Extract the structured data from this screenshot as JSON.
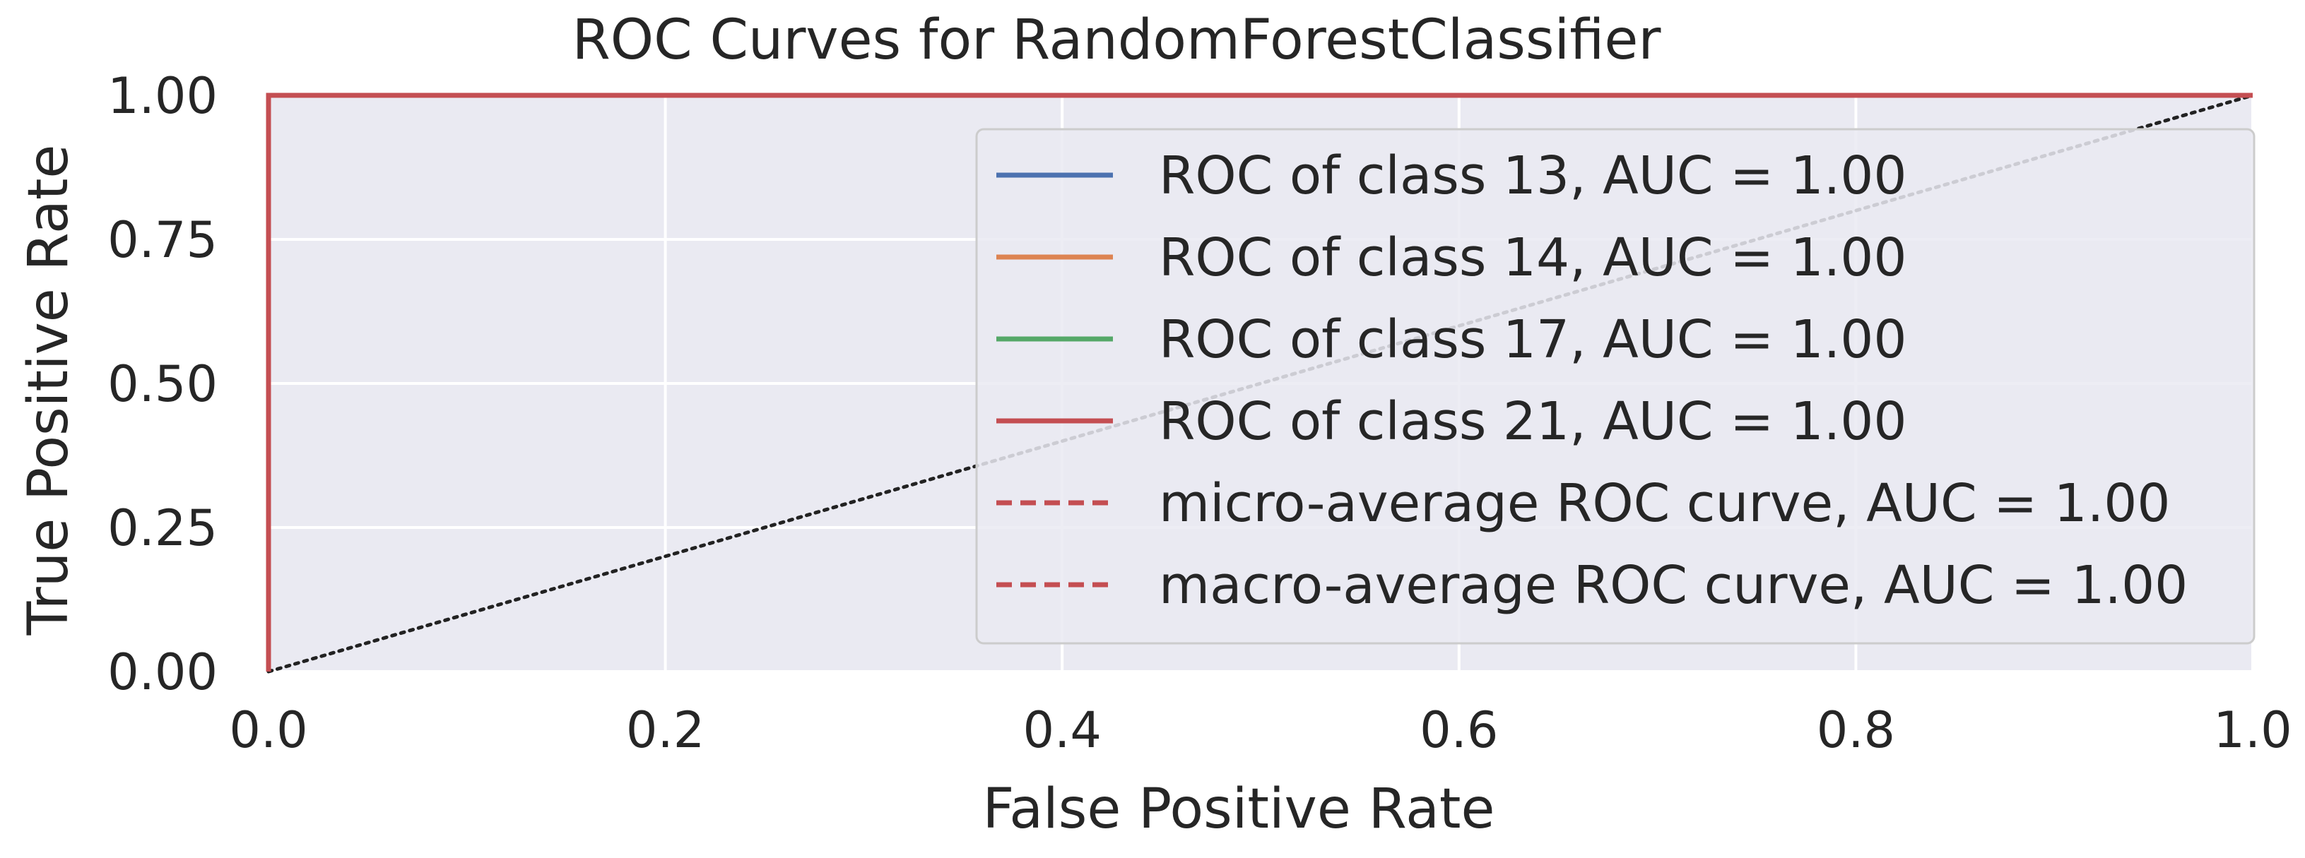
{
  "chart_data": {
    "type": "line",
    "title": "ROC Curves for RandomForestClassifier",
    "xlabel": "False Positive Rate",
    "ylabel": "True Positive Rate",
    "xlim": [
      0.0,
      1.0
    ],
    "ylim": [
      0.0,
      1.0
    ],
    "grid": true,
    "legend_position": "top-right",
    "x_ticks": [
      0.0,
      0.2,
      0.4,
      0.6,
      0.8,
      1.0
    ],
    "x_tick_labels": [
      "0.0",
      "0.2",
      "0.4",
      "0.6",
      "0.8",
      "1.0"
    ],
    "y_ticks": [
      0.0,
      0.25,
      0.5,
      0.75,
      1.0
    ],
    "y_tick_labels": [
      "0.00",
      "0.25",
      "0.50",
      "0.75",
      "1.00"
    ],
    "series": [
      {
        "name": "ROC of class 13, AUC = 1.00",
        "color": "#4c72b0",
        "style": "solid",
        "x": [
          0.0,
          0.0,
          1.0
        ],
        "y": [
          0.0,
          1.0,
          1.0
        ]
      },
      {
        "name": "ROC of class 14, AUC = 1.00",
        "color": "#dd8452",
        "style": "solid",
        "x": [
          0.0,
          0.0,
          1.0
        ],
        "y": [
          0.0,
          1.0,
          1.0
        ]
      },
      {
        "name": "ROC of class 17, AUC = 1.00",
        "color": "#55a868",
        "style": "solid",
        "x": [
          0.0,
          0.0,
          1.0
        ],
        "y": [
          0.0,
          1.0,
          1.0
        ]
      },
      {
        "name": "ROC of class 21, AUC = 1.00",
        "color": "#c44e52",
        "style": "solid",
        "x": [
          0.0,
          0.0,
          1.0
        ],
        "y": [
          0.0,
          1.0,
          1.0
        ]
      },
      {
        "name": "micro-average ROC curve, AUC = 1.00",
        "color": "#c44e52",
        "style": "dashed",
        "x": [
          0.0,
          0.0,
          1.0
        ],
        "y": [
          0.0,
          1.0,
          1.0
        ]
      },
      {
        "name": "macro-average ROC curve, AUC = 1.00",
        "color": "#c44e52",
        "style": "dashed",
        "x": [
          0.0,
          0.0,
          1.0
        ],
        "y": [
          0.0,
          1.0,
          1.0
        ]
      }
    ],
    "reference_line": {
      "x": [
        0.0,
        1.0
      ],
      "y": [
        0.0,
        1.0
      ],
      "color": "#222222",
      "style": "dotted"
    }
  },
  "colors": {
    "plot_background": "#eaeaf2",
    "grid": "#ffffff",
    "legend_background": "#eaeaf2",
    "legend_border": "#cccccc",
    "text": "#262626"
  }
}
